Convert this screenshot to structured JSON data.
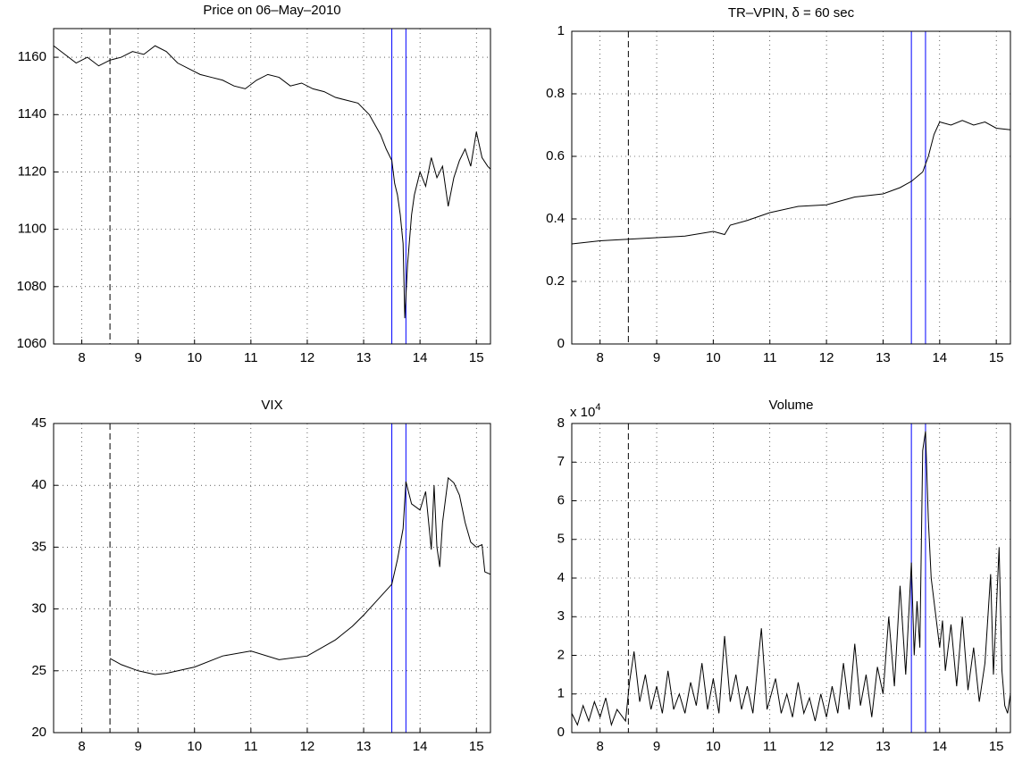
{
  "chart_data": [
    {
      "type": "line",
      "title": "Price on 06–May–2010",
      "x": [
        7.5,
        7.7,
        7.9,
        8.1,
        8.3,
        8.5,
        8.7,
        8.9,
        9.1,
        9.3,
        9.5,
        9.7,
        9.9,
        10.1,
        10.3,
        10.5,
        10.7,
        10.9,
        11.1,
        11.3,
        11.5,
        11.7,
        11.9,
        12.1,
        12.3,
        12.5,
        12.7,
        12.9,
        13.1,
        13.3,
        13.4,
        13.5,
        13.55,
        13.6,
        13.65,
        13.7,
        13.73,
        13.78,
        13.85,
        13.9,
        14.0,
        14.1,
        14.2,
        14.3,
        14.4,
        14.5,
        14.6,
        14.7,
        14.8,
        14.9,
        15.0,
        15.1,
        15.2,
        15.25
      ],
      "series": [
        {
          "color": "#000000",
          "values": [
            1164,
            1161,
            1158,
            1160,
            1157,
            1159,
            1160,
            1162,
            1161,
            1164,
            1162,
            1158,
            1156,
            1154,
            1153,
            1152,
            1150,
            1149,
            1152,
            1154,
            1153,
            1150,
            1151,
            1149,
            1148,
            1146,
            1145,
            1144,
            1140,
            1133,
            1128,
            1124,
            1116,
            1112,
            1105,
            1095,
            1069,
            1088,
            1105,
            1112,
            1120,
            1115,
            1125,
            1118,
            1122,
            1108,
            1118,
            1124,
            1128,
            1122,
            1134,
            1125,
            1122,
            1121
          ]
        }
      ],
      "xlim": [
        7.5,
        15.25
      ],
      "xticks": [
        8,
        9,
        10,
        11,
        12,
        13,
        14,
        15
      ],
      "ylim": [
        1060,
        1170
      ],
      "yticks": [
        1060,
        1080,
        1100,
        1120,
        1140,
        1160
      ],
      "grid": true,
      "vlines": [
        {
          "x": 8.5,
          "color": "#000000",
          "style": "dashed"
        },
        {
          "x": 13.5,
          "color": "#0000ff",
          "style": "solid"
        },
        {
          "x": 13.75,
          "color": "#0000ff",
          "style": "solid"
        }
      ]
    },
    {
      "type": "line",
      "title": "TR–VPIN, δ = 60 sec",
      "x": [
        7.5,
        8,
        8.5,
        9,
        9.5,
        10,
        10.2,
        10.3,
        10.6,
        11,
        11.5,
        12,
        12.5,
        13,
        13.3,
        13.5,
        13.7,
        13.8,
        13.9,
        14,
        14.2,
        14.4,
        14.6,
        14.8,
        15,
        15.25
      ],
      "series": [
        {
          "color": "#000000",
          "values": [
            0.32,
            0.33,
            0.335,
            0.34,
            0.345,
            0.36,
            0.35,
            0.38,
            0.395,
            0.42,
            0.44,
            0.445,
            0.47,
            0.48,
            0.5,
            0.52,
            0.55,
            0.6,
            0.67,
            0.71,
            0.7,
            0.715,
            0.7,
            0.71,
            0.69,
            0.685
          ]
        }
      ],
      "xlim": [
        7.5,
        15.25
      ],
      "xticks": [
        8,
        9,
        10,
        11,
        12,
        13,
        14,
        15
      ],
      "ylim": [
        0,
        1
      ],
      "yticks": [
        0,
        0.2,
        0.4,
        0.6,
        0.8,
        1
      ],
      "grid": true,
      "vlines": [
        {
          "x": 8.5,
          "color": "#000000",
          "style": "dashed"
        },
        {
          "x": 13.5,
          "color": "#0000ff",
          "style": "solid"
        },
        {
          "x": 13.75,
          "color": "#0000ff",
          "style": "solid"
        }
      ]
    },
    {
      "type": "line",
      "title": "VIX",
      "x": [
        8.5,
        8.7,
        9,
        9.3,
        9.5,
        10,
        10.5,
        11,
        11.5,
        12,
        12.5,
        12.8,
        13,
        13.2,
        13.4,
        13.5,
        13.6,
        13.7,
        13.75,
        13.85,
        14,
        14.1,
        14.2,
        14.25,
        14.3,
        14.35,
        14.4,
        14.5,
        14.6,
        14.7,
        14.8,
        14.9,
        15,
        15.1,
        15.15,
        15.25
      ],
      "series": [
        {
          "color": "#000000",
          "values": [
            26,
            25.5,
            25,
            24.7,
            24.8,
            25.3,
            26.2,
            26.6,
            25.9,
            26.2,
            27.5,
            28.6,
            29.5,
            30.5,
            31.5,
            32,
            34,
            36.5,
            40.3,
            38.5,
            38,
            39.5,
            34.8,
            40,
            35,
            33.4,
            37,
            40.6,
            40.2,
            39.2,
            37,
            35.4,
            35,
            35.2,
            33,
            32.8
          ]
        }
      ],
      "xlim": [
        7.5,
        15.25
      ],
      "xticks": [
        8,
        9,
        10,
        11,
        12,
        13,
        14,
        15
      ],
      "ylim": [
        20,
        45
      ],
      "yticks": [
        20,
        25,
        30,
        35,
        40,
        45
      ],
      "grid": true,
      "vlines": [
        {
          "x": 8.5,
          "color": "#000000",
          "style": "dashed"
        },
        {
          "x": 13.5,
          "color": "#0000ff",
          "style": "solid"
        },
        {
          "x": 13.75,
          "color": "#0000ff",
          "style": "solid"
        }
      ]
    },
    {
      "type": "line",
      "title": "Volume",
      "y_scale_base": "x 10",
      "y_scale_exponent": "4",
      "x": [
        7.5,
        7.6,
        7.7,
        7.8,
        7.9,
        8.0,
        8.1,
        8.2,
        8.3,
        8.45,
        8.52,
        8.6,
        8.7,
        8.8,
        8.9,
        9.0,
        9.1,
        9.2,
        9.3,
        9.4,
        9.5,
        9.6,
        9.7,
        9.8,
        9.9,
        10.0,
        10.1,
        10.2,
        10.3,
        10.4,
        10.5,
        10.6,
        10.7,
        10.85,
        10.95,
        11.1,
        11.2,
        11.3,
        11.4,
        11.5,
        11.6,
        11.7,
        11.8,
        11.9,
        12.0,
        12.1,
        12.2,
        12.3,
        12.4,
        12.5,
        12.6,
        12.7,
        12.8,
        12.9,
        13.0,
        13.1,
        13.2,
        13.3,
        13.4,
        13.5,
        13.55,
        13.6,
        13.65,
        13.7,
        13.75,
        13.8,
        13.85,
        13.9,
        14.0,
        14.05,
        14.1,
        14.2,
        14.3,
        14.4,
        14.5,
        14.6,
        14.7,
        14.8,
        14.9,
        14.95,
        15.05,
        15.1,
        15.15,
        15.2,
        15.25
      ],
      "series": [
        {
          "color": "#000000",
          "values": [
            0.5,
            0.2,
            0.7,
            0.3,
            0.8,
            0.4,
            0.9,
            0.2,
            0.6,
            0.3,
            1.3,
            2.1,
            0.8,
            1.5,
            0.6,
            1.2,
            0.5,
            1.6,
            0.6,
            1.0,
            0.5,
            1.3,
            0.7,
            1.8,
            0.6,
            1.4,
            0.5,
            2.5,
            0.8,
            1.5,
            0.6,
            1.2,
            0.5,
            2.7,
            0.6,
            1.4,
            0.5,
            1.0,
            0.4,
            1.3,
            0.5,
            0.9,
            0.3,
            1.0,
            0.4,
            1.2,
            0.5,
            1.8,
            0.6,
            2.3,
            0.7,
            1.5,
            0.4,
            1.7,
            1.0,
            3.0,
            1.2,
            3.8,
            1.5,
            4.4,
            2.0,
            3.4,
            2.2,
            7.3,
            7.8,
            5.5,
            4.0,
            3.4,
            2.2,
            2.9,
            1.6,
            2.8,
            1.2,
            3.0,
            1.1,
            2.2,
            0.8,
            1.8,
            4.1,
            1.5,
            4.8,
            1.6,
            0.7,
            0.5,
            1.0
          ]
        }
      ],
      "xlim": [
        7.5,
        15.25
      ],
      "xticks": [
        8,
        9,
        10,
        11,
        12,
        13,
        14,
        15
      ],
      "ylim": [
        0,
        8
      ],
      "yticks": [
        0,
        1,
        2,
        3,
        4,
        5,
        6,
        7,
        8
      ],
      "grid": true,
      "vlines": [
        {
          "x": 8.5,
          "color": "#000000",
          "style": "dashed"
        },
        {
          "x": 13.5,
          "color": "#0000ff",
          "style": "solid"
        },
        {
          "x": 13.75,
          "color": "#0000ff",
          "style": "solid"
        }
      ]
    }
  ]
}
